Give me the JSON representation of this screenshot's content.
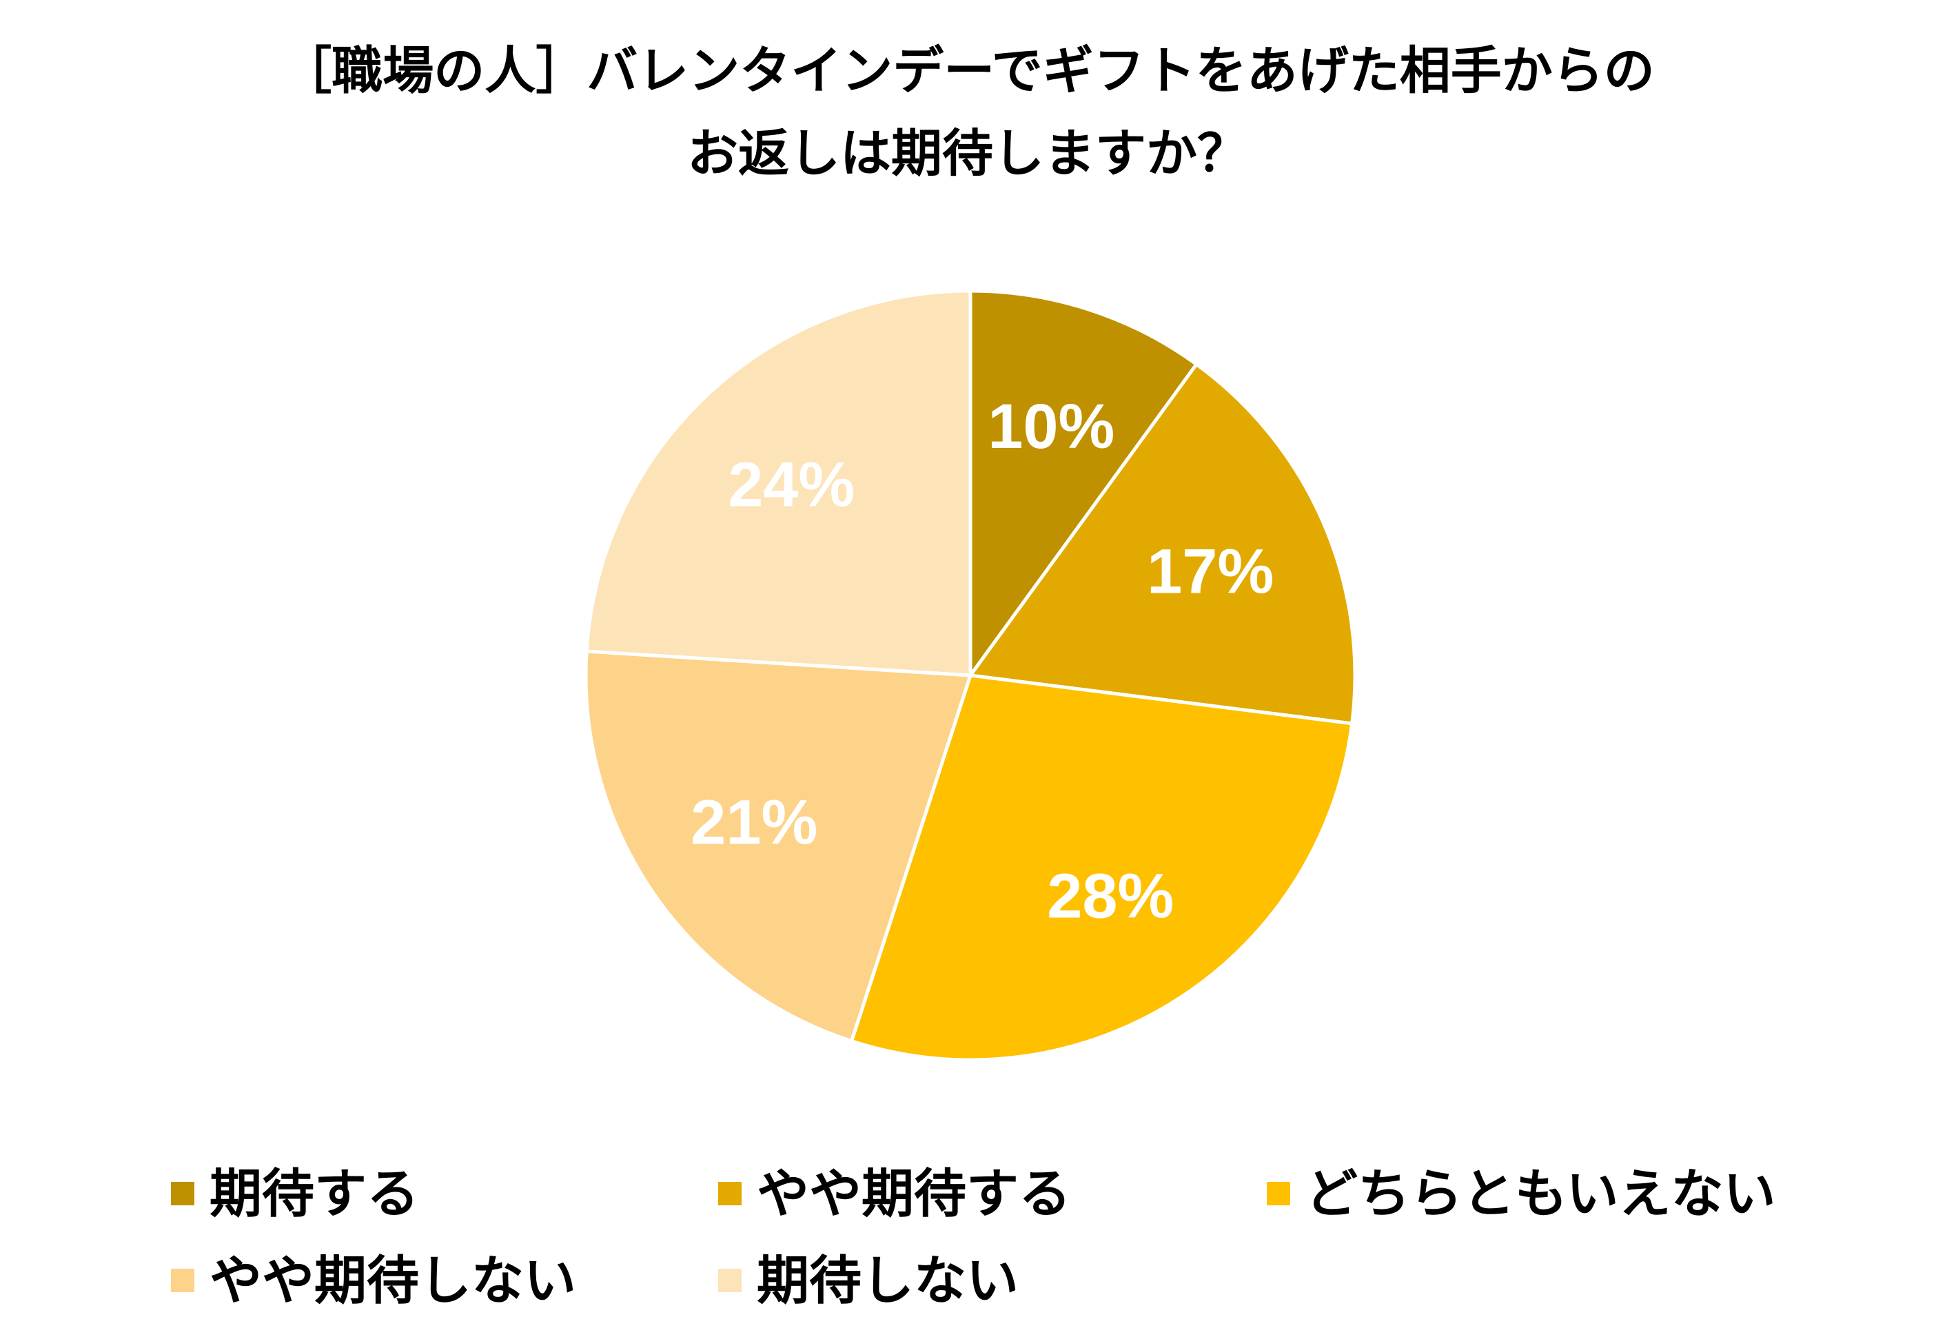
{
  "chart_data": {
    "type": "pie",
    "title_lines": [
      "［職場の人］バレンタインデーでギフトをあげた相手からの",
      "お返しは期待しますか？"
    ],
    "start_angle_deg": 0,
    "direction": "clockwise",
    "slices": [
      {
        "label": "期待する",
        "value": 10,
        "value_label": "10%",
        "color": "#BF9000"
      },
      {
        "label": "やや期待する",
        "value": 17,
        "value_label": "17%",
        "color": "#E2AA00"
      },
      {
        "label": "どちらともいえない",
        "value": 28,
        "value_label": "28%",
        "color": "#FFC000"
      },
      {
        "label": "やや期待しない",
        "value": 21,
        "value_label": "21%",
        "color": "#FDD38A"
      },
      {
        "label": "期待しない",
        "value": 24,
        "value_label": "24%",
        "color": "#FDE3B8"
      }
    ],
    "legend_position": "bottom",
    "slice_border_color": "#FFFFFF"
  }
}
